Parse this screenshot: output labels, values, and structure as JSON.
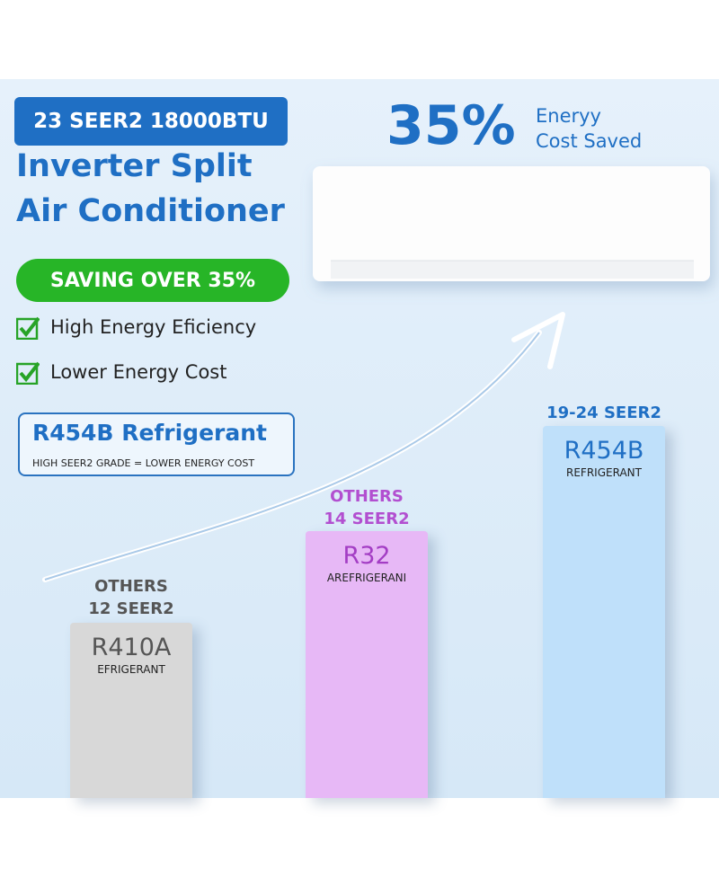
{
  "badge": "23 SEER2 18000BTU",
  "title": [
    "Inverter Split",
    "Air Conditioner"
  ],
  "saving": "SAVING OVER 35%",
  "features": [
    "High Energy Eficiency",
    "Lower Energy Cost"
  ],
  "refrigerant_box": {
    "title": "R454B Refrigerant",
    "subtitle": "HIGH SEER2 GRADE = LOWER ENERGY COST"
  },
  "headline": {
    "percent": "35%",
    "text": [
      "Eneryy",
      "Cost Saved"
    ]
  },
  "bars": [
    {
      "caption": [
        "OTHERS",
        "12 SEER2"
      ],
      "name": "R410A",
      "label": "EFRIGERANT"
    },
    {
      "caption": [
        "OTHERS",
        "14 SEER2"
      ],
      "name": "R32",
      "label": "AREFRIGERANI"
    },
    {
      "caption": [
        "19-24 SEER2"
      ],
      "name": "R454B",
      "label": "REFRIGERANT"
    }
  ]
}
